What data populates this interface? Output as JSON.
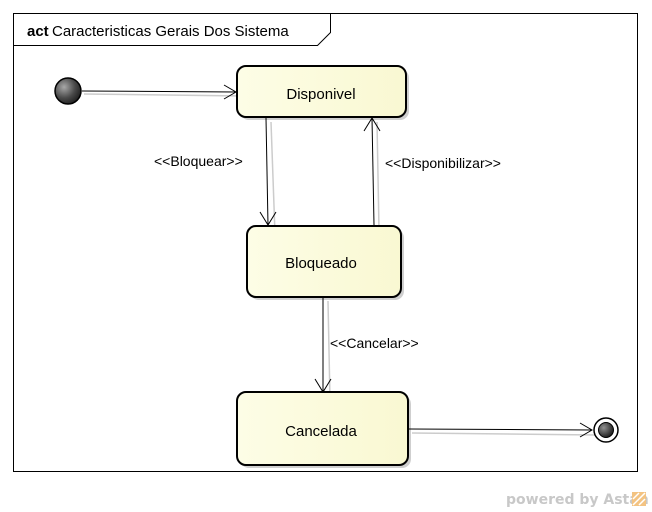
{
  "frame": {
    "keyword": "act",
    "title": "Caracteristicas Gerais Dos Sistema"
  },
  "states": {
    "disponivel": "Disponivel",
    "bloqueado": "Bloqueado",
    "cancelada": "Cancelada"
  },
  "transitions": {
    "bloquear": "<<Bloquear>>",
    "disponibilizar": "<<Disponibilizar>>",
    "cancelar": "<<Cancelar>>"
  },
  "watermark": {
    "text": "powered by Astah"
  },
  "colors": {
    "state_fill": "#fdfde0",
    "line": "#000000",
    "watermark_text": "#c8c8c8",
    "watermark_logo": "#f0a040"
  }
}
